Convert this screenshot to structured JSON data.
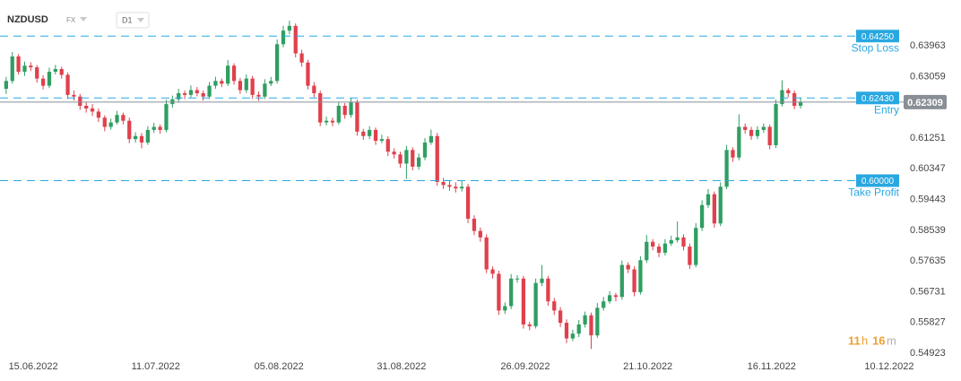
{
  "chart_data": {
    "type": "candlestick",
    "symbol": "NZDUSD",
    "market": "FX",
    "timeframe": "D1",
    "up_color": "#2f9e62",
    "down_color": "#e0404c",
    "level_color": "#29a8e0",
    "price_color": "#8a8f96",
    "ohlc": [
      [
        0.627,
        0.6305,
        0.6255,
        0.6293
      ],
      [
        0.6293,
        0.6378,
        0.6285,
        0.6365
      ],
      [
        0.6365,
        0.6372,
        0.6312,
        0.632
      ],
      [
        0.632,
        0.635,
        0.6308,
        0.6338
      ],
      [
        0.6338,
        0.6348,
        0.6322,
        0.6333
      ],
      [
        0.6333,
        0.634,
        0.6288,
        0.63
      ],
      [
        0.63,
        0.631,
        0.6268,
        0.6279
      ],
      [
        0.6279,
        0.6332,
        0.6272,
        0.632
      ],
      [
        0.632,
        0.634,
        0.6312,
        0.6328
      ],
      [
        0.6328,
        0.6335,
        0.63,
        0.6311
      ],
      [
        0.6311,
        0.6318,
        0.624,
        0.6252
      ],
      [
        0.6252,
        0.6265,
        0.6235,
        0.6247
      ],
      [
        0.6247,
        0.6255,
        0.6208,
        0.622
      ],
      [
        0.622,
        0.6232,
        0.62,
        0.6212
      ],
      [
        0.6212,
        0.6225,
        0.619,
        0.6203
      ],
      [
        0.6203,
        0.6212,
        0.6172,
        0.6185
      ],
      [
        0.6185,
        0.6192,
        0.6145,
        0.6158
      ],
      [
        0.6158,
        0.6182,
        0.615,
        0.6171
      ],
      [
        0.6171,
        0.6205,
        0.6165,
        0.6193
      ],
      [
        0.6193,
        0.62,
        0.6165,
        0.6176
      ],
      [
        0.6176,
        0.6185,
        0.611,
        0.6122
      ],
      [
        0.6122,
        0.6142,
        0.6112,
        0.6131
      ],
      [
        0.6131,
        0.614,
        0.6095,
        0.6112
      ],
      [
        0.6112,
        0.616,
        0.6105,
        0.6149
      ],
      [
        0.6149,
        0.617,
        0.614,
        0.6158
      ],
      [
        0.6158,
        0.6165,
        0.6138,
        0.6149
      ],
      [
        0.6149,
        0.6238,
        0.6142,
        0.6225
      ],
      [
        0.6225,
        0.625,
        0.6215,
        0.6239
      ],
      [
        0.6239,
        0.627,
        0.623,
        0.6257
      ],
      [
        0.6257,
        0.6265,
        0.624,
        0.6252
      ],
      [
        0.6252,
        0.628,
        0.6245,
        0.6266
      ],
      [
        0.6266,
        0.6275,
        0.6248,
        0.6257
      ],
      [
        0.6257,
        0.6265,
        0.6235,
        0.6247
      ],
      [
        0.6247,
        0.629,
        0.624,
        0.6279
      ],
      [
        0.6279,
        0.6305,
        0.627,
        0.6293
      ],
      [
        0.6293,
        0.63,
        0.6275,
        0.6285
      ],
      [
        0.6285,
        0.6355,
        0.6278,
        0.6338
      ],
      [
        0.6338,
        0.6345,
        0.6282,
        0.6293
      ],
      [
        0.6293,
        0.6302,
        0.6255,
        0.6266
      ],
      [
        0.6266,
        0.6312,
        0.6258,
        0.63
      ],
      [
        0.63,
        0.6308,
        0.624,
        0.6252
      ],
      [
        0.6252,
        0.6262,
        0.6235,
        0.6247
      ],
      [
        0.6247,
        0.6298,
        0.624,
        0.6285
      ],
      [
        0.6285,
        0.6305,
        0.6278,
        0.6293
      ],
      [
        0.6293,
        0.6415,
        0.6285,
        0.6401
      ],
      [
        0.6401,
        0.6455,
        0.6392,
        0.6441
      ],
      [
        0.6441,
        0.647,
        0.643,
        0.6455
      ],
      [
        0.6455,
        0.6462,
        0.6362,
        0.6374
      ],
      [
        0.6374,
        0.6385,
        0.6335,
        0.6347
      ],
      [
        0.6347,
        0.6355,
        0.6268,
        0.6279
      ],
      [
        0.6279,
        0.629,
        0.6245,
        0.6257
      ],
      [
        0.6257,
        0.6265,
        0.616,
        0.6171
      ],
      [
        0.6171,
        0.6188,
        0.6162,
        0.6176
      ],
      [
        0.6176,
        0.6185,
        0.616,
        0.6171
      ],
      [
        0.6171,
        0.6232,
        0.6165,
        0.622
      ],
      [
        0.622,
        0.6228,
        0.6182,
        0.6193
      ],
      [
        0.6193,
        0.6242,
        0.6185,
        0.623
      ],
      [
        0.623,
        0.6238,
        0.6132,
        0.6144
      ],
      [
        0.6144,
        0.6152,
        0.612,
        0.6131
      ],
      [
        0.6131,
        0.616,
        0.6122,
        0.6149
      ],
      [
        0.6149,
        0.6156,
        0.6105,
        0.6117
      ],
      [
        0.6117,
        0.6135,
        0.611,
        0.6122
      ],
      [
        0.6122,
        0.613,
        0.6072,
        0.6085
      ],
      [
        0.6085,
        0.6095,
        0.6065,
        0.6077
      ],
      [
        0.6077,
        0.6085,
        0.6038,
        0.605
      ],
      [
        0.605,
        0.6102,
        0.6005,
        0.609
      ],
      [
        0.609,
        0.6098,
        0.603,
        0.6041
      ],
      [
        0.6041,
        0.608,
        0.6032,
        0.6068
      ],
      [
        0.6068,
        0.6125,
        0.606,
        0.6112
      ],
      [
        0.6112,
        0.615,
        0.6105,
        0.6131
      ],
      [
        0.6131,
        0.614,
        0.5985,
        0.5996
      ],
      [
        0.5996,
        0.6008,
        0.5975,
        0.5987
      ],
      [
        0.5987,
        0.6,
        0.597,
        0.5982
      ],
      [
        0.5982,
        0.5995,
        0.5965,
        0.5977
      ],
      [
        0.5977,
        0.6,
        0.5968,
        0.5982
      ],
      [
        0.5982,
        0.599,
        0.5875,
        0.5888
      ],
      [
        0.5888,
        0.5898,
        0.584,
        0.5852
      ],
      [
        0.5852,
        0.5862,
        0.582,
        0.5833
      ],
      [
        0.5833,
        0.5842,
        0.5728,
        0.5739
      ],
      [
        0.5739,
        0.5748,
        0.5712,
        0.5726
      ],
      [
        0.5726,
        0.5735,
        0.5605,
        0.5618
      ],
      [
        0.5618,
        0.5642,
        0.5608,
        0.5631
      ],
      [
        0.5631,
        0.5725,
        0.5622,
        0.5712
      ],
      [
        0.5712,
        0.5722,
        0.57,
        0.5712
      ],
      [
        0.5712,
        0.572,
        0.5565,
        0.5577
      ],
      [
        0.5577,
        0.5585,
        0.556,
        0.5572
      ],
      [
        0.5572,
        0.5712,
        0.5565,
        0.5699
      ],
      [
        0.5699,
        0.5752,
        0.569,
        0.5712
      ],
      [
        0.5712,
        0.572,
        0.5632,
        0.5645
      ],
      [
        0.5645,
        0.5655,
        0.5605,
        0.5618
      ],
      [
        0.5618,
        0.5628,
        0.557,
        0.5582
      ],
      [
        0.5582,
        0.5592,
        0.5522,
        0.5536
      ],
      [
        0.5536,
        0.5562,
        0.5528,
        0.555
      ],
      [
        0.555,
        0.559,
        0.554,
        0.5577
      ],
      [
        0.5577,
        0.5615,
        0.5568,
        0.5604
      ],
      [
        0.5604,
        0.5612,
        0.5505,
        0.5545
      ],
      [
        0.5545,
        0.564,
        0.5538,
        0.5626
      ],
      [
        0.5626,
        0.5658,
        0.5618,
        0.5645
      ],
      [
        0.5645,
        0.5675,
        0.5638,
        0.5663
      ],
      [
        0.5663,
        0.567,
        0.5645,
        0.5658
      ],
      [
        0.5658,
        0.5765,
        0.565,
        0.5752
      ],
      [
        0.5752,
        0.576,
        0.5728,
        0.5739
      ],
      [
        0.5739,
        0.5748,
        0.566,
        0.5672
      ],
      [
        0.5672,
        0.5778,
        0.5665,
        0.5766
      ],
      [
        0.5766,
        0.584,
        0.5758,
        0.582
      ],
      [
        0.582,
        0.5828,
        0.5795,
        0.5806
      ],
      [
        0.5806,
        0.5815,
        0.5775,
        0.5788
      ],
      [
        0.5788,
        0.5828,
        0.578,
        0.5815
      ],
      [
        0.5815,
        0.5838,
        0.5808,
        0.5825
      ],
      [
        0.5825,
        0.588,
        0.5818,
        0.5833
      ],
      [
        0.5833,
        0.5842,
        0.5795,
        0.5806
      ],
      [
        0.5806,
        0.5815,
        0.574,
        0.5752
      ],
      [
        0.5752,
        0.5875,
        0.5745,
        0.5861
      ],
      [
        0.5861,
        0.5942,
        0.5852,
        0.5928
      ],
      [
        0.5928,
        0.5975,
        0.592,
        0.596
      ],
      [
        0.596,
        0.5968,
        0.5862,
        0.5874
      ],
      [
        0.5874,
        0.5995,
        0.5866,
        0.5982
      ],
      [
        0.5982,
        0.6105,
        0.5975,
        0.609
      ],
      [
        0.609,
        0.6098,
        0.6055,
        0.6068
      ],
      [
        0.6068,
        0.6195,
        0.606,
        0.6158
      ],
      [
        0.6158,
        0.6168,
        0.6138,
        0.6149
      ],
      [
        0.6149,
        0.6158,
        0.612,
        0.6131
      ],
      [
        0.6131,
        0.616,
        0.6122,
        0.6149
      ],
      [
        0.6149,
        0.6168,
        0.614,
        0.6158
      ],
      [
        0.6158,
        0.6165,
        0.6092,
        0.6104
      ],
      [
        0.6104,
        0.6238,
        0.6096,
        0.6225
      ],
      [
        0.6225,
        0.6295,
        0.6218,
        0.6266
      ],
      [
        0.6266,
        0.6272,
        0.6245,
        0.6257
      ],
      [
        0.6257,
        0.6265,
        0.621,
        0.622
      ],
      [
        0.622,
        0.6245,
        0.6212,
        0.6231
      ]
    ],
    "xlim": [
      -1,
      145.3
    ],
    "xticks": [
      {
        "value": 4.4,
        "label": "15.06.2022"
      },
      {
        "value": 24.3,
        "label": "11.07.2022"
      },
      {
        "value": 44.3,
        "label": "05.08.2022"
      },
      {
        "value": 64.2,
        "label": "31.08.2022"
      },
      {
        "value": 84.3,
        "label": "26.09.2022"
      },
      {
        "value": 104.2,
        "label": "21.10.2022"
      },
      {
        "value": 124.3,
        "label": "16.11.2022"
      },
      {
        "value": 143.4,
        "label": "10.12.2022"
      }
    ],
    "ylim": [
      0.5482,
      0.6531
    ],
    "yticks": [
      0.63963,
      0.63059,
      0.61251,
      0.60347,
      0.59443,
      0.58539,
      0.57635,
      0.56731,
      0.55827,
      0.54923
    ],
    "levels": [
      {
        "name": "Stop Loss",
        "value": 0.6425,
        "label": "0.64250"
      },
      {
        "name": "Entry",
        "value": 0.6243,
        "label": "0.62430"
      },
      {
        "name": "Take Profit",
        "value": 0.6,
        "label": "0.60000"
      }
    ],
    "last_price": 0.62309,
    "countdown": [
      "11",
      "h",
      "16",
      "m"
    ]
  }
}
